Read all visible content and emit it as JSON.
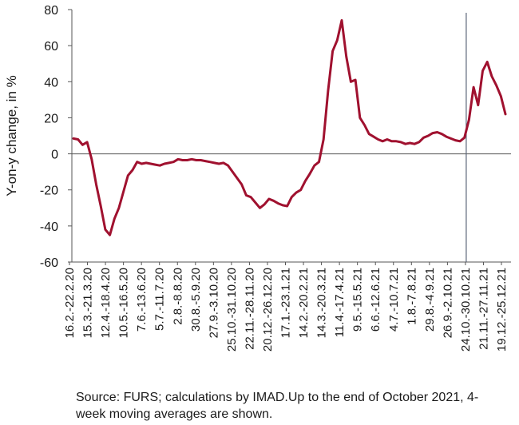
{
  "chart_data": {
    "type": "line",
    "title": "",
    "ylabel": "Y-on-y change, in %",
    "ylim": [
      -60,
      80
    ],
    "yticks": [
      -60,
      -40,
      -20,
      0,
      20,
      40,
      60,
      80
    ],
    "grid": false,
    "legend": "none",
    "xtick_labels": [
      "16.2.-22.2.20",
      "15.3.-21.3.20",
      "12.4.-18.4.20",
      "10.5.-16.5.20",
      "7.6.-13.6.20",
      "5.7.-11.7.20",
      "2.8.-8.8.20",
      "30.8.-5.9.20",
      "27.9.-3.10.20",
      "25.10.-31.10.20",
      "22.11.-28.11.20",
      "20.12.-26.12.20",
      "17.1.-23.1.21",
      "14.2.-20.2.21",
      "14.3.-20.3.21",
      "11.4.-17.4.21",
      "9.5.-15.5.21",
      "6.6.-12.6.21",
      "4.7.-10.7.21",
      "1.8.-7.8.21",
      "29.8.-4.9.21",
      "26.9.-2.10.21",
      "24.10.-30.10.21",
      "21.11.-27.11.21",
      "19.12.-25.12.21"
    ],
    "vertical_marker_at_label": "24.10.-30.10.21",
    "series": [
      {
        "color": "#a0112f",
        "values": [
          8.5,
          8,
          5,
          6.5,
          -3,
          -17,
          -29,
          -42,
          -45,
          -36,
          -30,
          -21,
          -12,
          -9,
          -4.5,
          -5.5,
          -5,
          -5.5,
          -6,
          -6.5,
          -5.5,
          -5,
          -4.5,
          -3,
          -3.5,
          -3.5,
          -3,
          -3.5,
          -3.5,
          -4,
          -4.5,
          -5,
          -5.5,
          -5,
          -6.5,
          -10,
          -13.5,
          -17,
          -23,
          -24,
          -27,
          -30,
          -28,
          -25,
          -26,
          -27.5,
          -28.5,
          -29,
          -24,
          -21.5,
          -20,
          -15,
          -11,
          -6.5,
          -4.5,
          8,
          35,
          57,
          63,
          74,
          54,
          40,
          41,
          20,
          16,
          11,
          9.5,
          8,
          7,
          8,
          7,
          7,
          6.5,
          5.5,
          6,
          5.5,
          6.5,
          9,
          10,
          11.5,
          12,
          11,
          9.5,
          8.5,
          7.5,
          7,
          9,
          19,
          37,
          27,
          46,
          51,
          43,
          38,
          32,
          22
        ]
      }
    ]
  },
  "footnote": "Source: FURS; calculations by IMAD.Up to the end of October 2021, 4-week moving averages are shown."
}
